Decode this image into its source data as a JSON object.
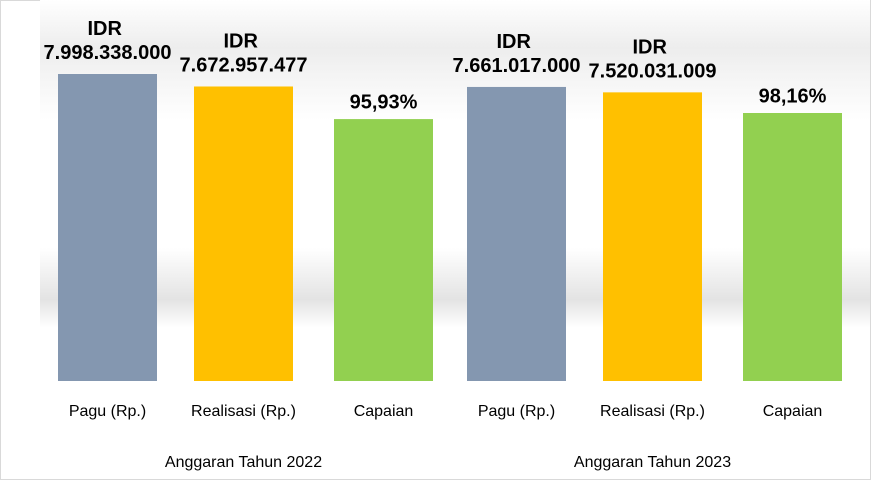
{
  "chart_data": {
    "type": "bar",
    "categories": [
      "Anggaran Tahun 2022",
      "Anggaran Tahun 2023"
    ],
    "series": [
      {
        "name": "Pagu (Rp.)",
        "color": "#8497b0",
        "values": [
          7998338000,
          7661017000
        ],
        "value_labels": [
          "IDR 7.998.338.000",
          "IDR 7.661.017.000"
        ]
      },
      {
        "name": "Realisasi (Rp.)",
        "color": "#ffc000",
        "values": [
          7672957477,
          7520031009
        ],
        "value_labels": [
          "IDR 7.672.957.477",
          "IDR 7.520.031.009"
        ]
      },
      {
        "name": "Capaian",
        "color": "#92d050",
        "axis": "y2",
        "values": [
          95.93,
          98.16
        ],
        "value_labels": [
          "95,93%",
          "98,16%"
        ]
      }
    ]
  }
}
